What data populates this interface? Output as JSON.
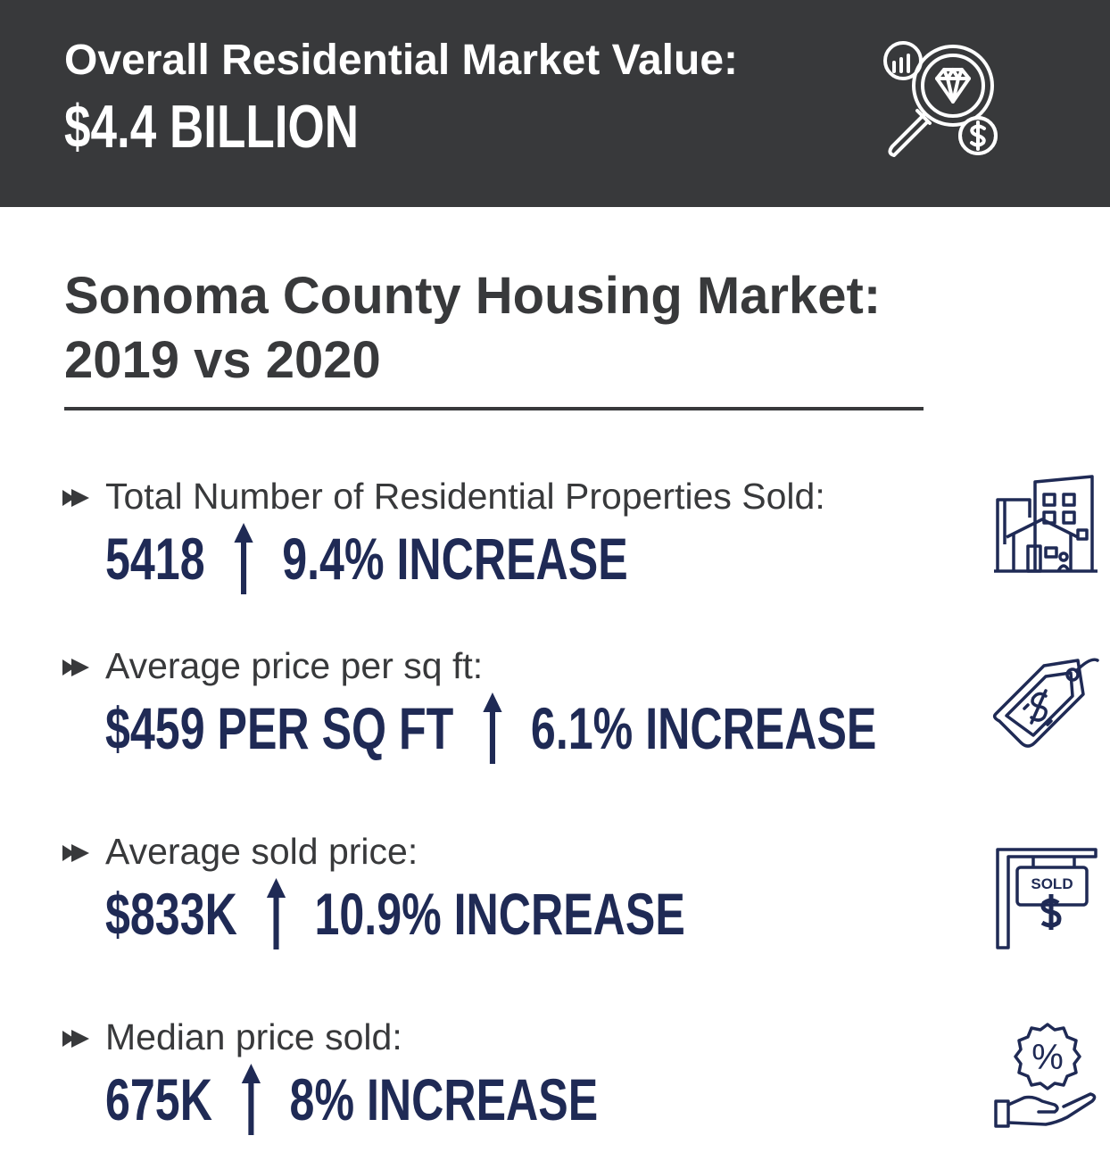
{
  "banner": {
    "label": "Overall Residential Market Value:",
    "value": "$4.4 BILLION",
    "icon": "magnifier-diamond-icon"
  },
  "title": {
    "line1": "Sonoma County Housing Market:",
    "line2": "2019 vs 2020"
  },
  "stats": [
    {
      "label": "Total Number of Residential Properties Sold:",
      "value": "5418",
      "change": "9.4% INCREASE",
      "icon": "buildings-house-icon"
    },
    {
      "label": "Average price per sq ft:",
      "value": "$459 PER SQ FT",
      "change": "6.1% INCREASE",
      "icon": "price-tag-icon"
    },
    {
      "label": "Average sold price:",
      "value": "$833K",
      "change": "10.9% INCREASE",
      "icon": "sold-sign-icon"
    },
    {
      "label": "Median price sold:",
      "value": "675K",
      "change": "8% INCREASE",
      "icon": "percent-hand-icon"
    }
  ],
  "colors": {
    "banner_bg": "#38393b",
    "heading_text": "#38393b",
    "stat_value": "#1f2a55"
  }
}
